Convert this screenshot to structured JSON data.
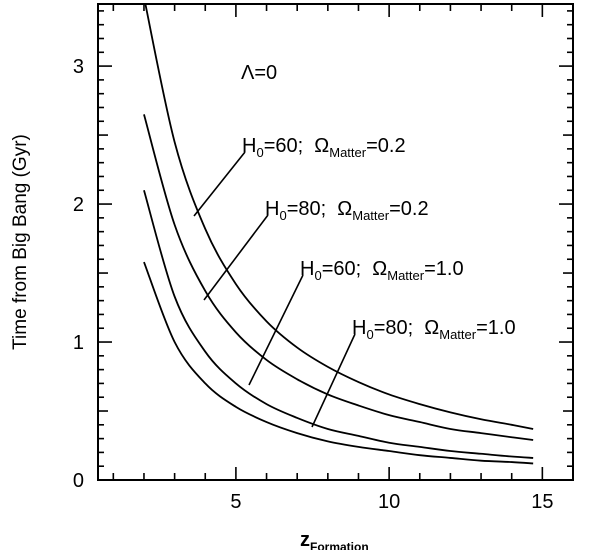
{
  "chart_data": {
    "type": "line",
    "title": "",
    "xlabel": {
      "main": "z",
      "sub": "Formation"
    },
    "ylabel": "Time from Big Bang (Gyr)",
    "xlim": [
      0.5,
      16
    ],
    "ylim": [
      0,
      3.45
    ],
    "xticks": [
      5,
      10,
      15
    ],
    "yticks": [
      0,
      1,
      2,
      3
    ],
    "grid": false,
    "legend": "none",
    "lambda_label": "Λ=0",
    "series": [
      {
        "x": [
          2,
          3,
          4,
          5,
          6,
          7,
          8,
          9,
          10,
          11,
          12,
          13,
          14,
          14.7
        ],
        "y": [
          3.5,
          2.45,
          1.82,
          1.42,
          1.15,
          0.96,
          0.82,
          0.71,
          0.62,
          0.55,
          0.49,
          0.44,
          0.4,
          0.37
        ]
      },
      {
        "x": [
          2,
          3,
          4,
          5,
          6,
          7,
          8,
          9,
          10,
          11,
          12,
          13,
          14,
          14.7
        ],
        "y": [
          2.65,
          1.85,
          1.37,
          1.07,
          0.87,
          0.73,
          0.62,
          0.54,
          0.47,
          0.42,
          0.37,
          0.34,
          0.31,
          0.29
        ]
      },
      {
        "x": [
          2,
          3,
          4,
          5,
          6,
          7,
          8,
          9,
          10,
          11,
          12,
          13,
          14,
          14.7
        ],
        "y": [
          2.1,
          1.33,
          0.93,
          0.7,
          0.55,
          0.45,
          0.37,
          0.32,
          0.27,
          0.24,
          0.21,
          0.19,
          0.17,
          0.16
        ]
      },
      {
        "x": [
          2,
          3,
          4,
          5,
          6,
          7,
          8,
          9,
          10,
          11,
          12,
          13,
          14,
          14.7
        ],
        "y": [
          1.58,
          1.0,
          0.7,
          0.53,
          0.42,
          0.34,
          0.28,
          0.24,
          0.21,
          0.18,
          0.16,
          0.14,
          0.13,
          0.12
        ]
      }
    ],
    "annotations": [
      {
        "h": "H",
        "h_sub": "0",
        "h_val": "=60;",
        "omega": "Ω",
        "omega_sub": "Matter",
        "omega_val": "=0.2"
      },
      {
        "h": "H",
        "h_sub": "0",
        "h_val": "=80;",
        "omega": "Ω",
        "omega_sub": "Matter",
        "omega_val": "=0.2"
      },
      {
        "h": "H",
        "h_sub": "0",
        "h_val": "=60;",
        "omega": "Ω",
        "omega_sub": "Matter",
        "omega_val": "=1.0"
      },
      {
        "h": "H",
        "h_sub": "0",
        "h_val": "=80;",
        "omega": "Ω",
        "omega_sub": "Matter",
        "omega_val": "=1.0"
      }
    ]
  }
}
